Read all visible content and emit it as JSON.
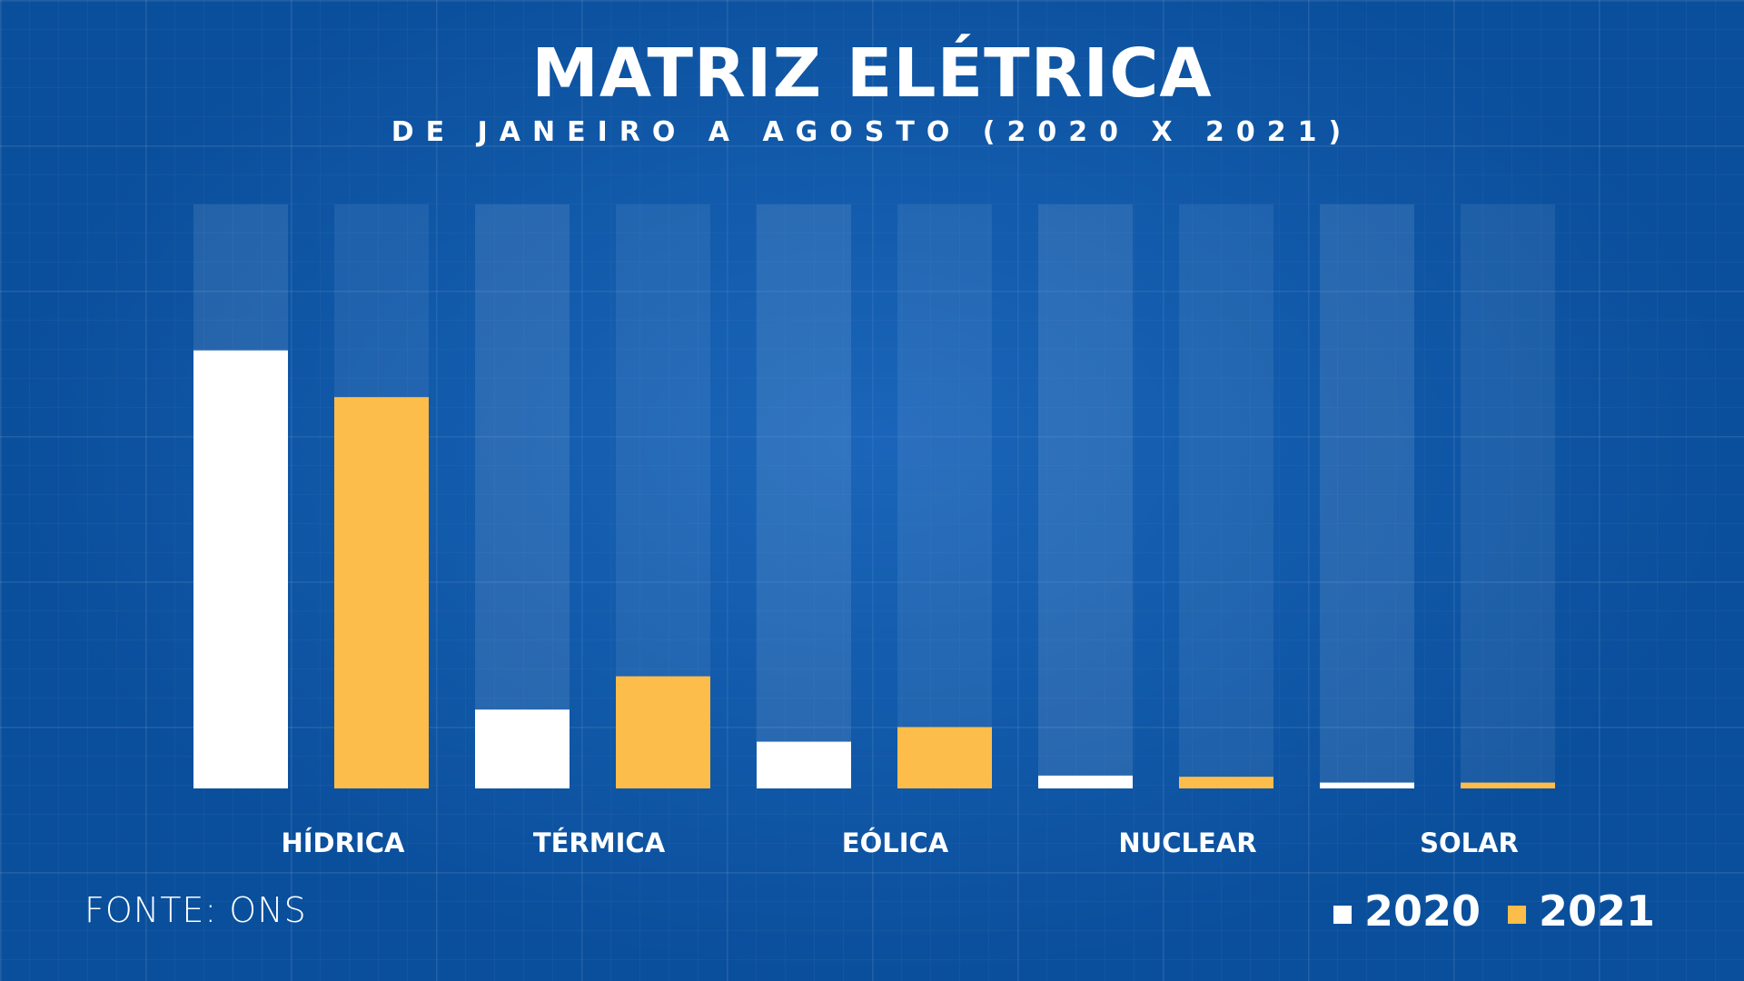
{
  "chart_data": {
    "type": "bar",
    "title": "MATRIZ ELÉTRICA",
    "subtitle": "DE JANEIRO A AGOSTO (2020 X 2021)",
    "categories": [
      "HÍDRICA",
      "TÉRMICA",
      "EÓLICA",
      "NUCLEAR",
      "SOLAR"
    ],
    "series": [
      {
        "name": "2020",
        "color": "#ffffff",
        "values": [
          75,
          13.5,
          8,
          2.2,
          1
        ]
      },
      {
        "name": "2021",
        "color": "#fdbd4a",
        "values": [
          67,
          19.2,
          10.5,
          2,
          1
        ]
      }
    ],
    "ylim": [
      0,
      100
    ],
    "grid": true,
    "legend_position": "bottom-right",
    "colors": {
      "background": "#0a4f9c",
      "track": "#ffffff"
    }
  },
  "source": "FONTE: ONS"
}
